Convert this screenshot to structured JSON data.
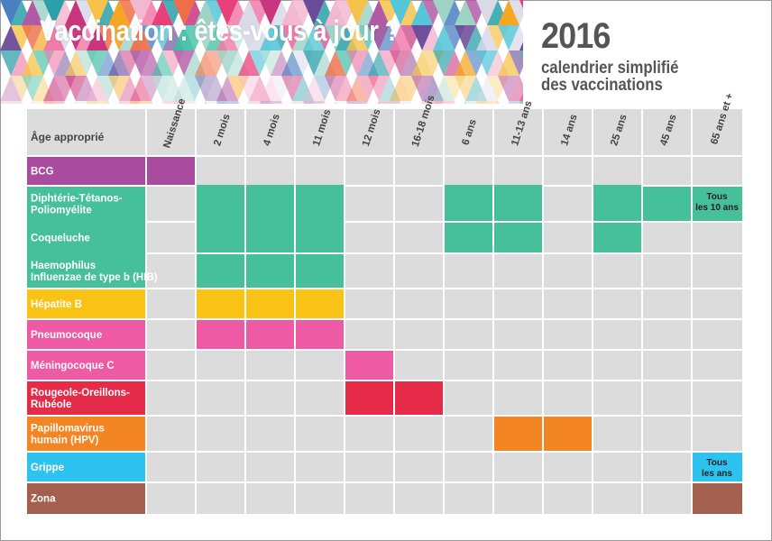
{
  "header": {
    "title": "Vaccination : êtes-vous à jour ?",
    "year": "2016",
    "subtitle_line1": "calendrier simplifié",
    "subtitle_line2": "des vaccinations"
  },
  "chart_data": {
    "type": "table",
    "corner_label": "Âge approprié",
    "columns": [
      "Naissance",
      "2 mois",
      "4 mois",
      "11 mois",
      "12 mois",
      "16-18 mois",
      "6 ans",
      "11-13 ans",
      "14 ans",
      "25 ans",
      "45 ans",
      "65 ans et +"
    ],
    "rows": [
      {
        "label": [
          "BCG"
        ],
        "color": "#a94b9f",
        "cells": [
          0
        ]
      },
      {
        "label": [
          "Diphtérie-Tétanos-",
          "Poliomyélite"
        ],
        "color": "#46c09a",
        "cells": [
          1,
          2,
          3,
          6,
          7,
          9,
          10
        ],
        "note": [
          "Tous",
          "les 10 ans"
        ],
        "note_col": 11
      },
      {
        "label": [
          "Coqueluche"
        ],
        "color": "#46c09a",
        "cells": [
          1,
          2,
          3,
          6,
          7,
          9
        ]
      },
      {
        "label": [
          "Haemophilus",
          "Influenzae de type b (HIB)"
        ],
        "color": "#46c09a",
        "cells": [
          1,
          2,
          3
        ]
      },
      {
        "label": [
          "Hépatite B"
        ],
        "color": "#f9c315",
        "cells": [
          1,
          2,
          3
        ]
      },
      {
        "label": [
          "Pneumocoque"
        ],
        "color": "#ee5aa4",
        "cells": [
          1,
          2,
          3
        ]
      },
      {
        "label": [
          "Méningocoque C"
        ],
        "color": "#ee5aa4",
        "cells": [
          4
        ]
      },
      {
        "label": [
          "Rougeole-Oreillons-",
          "Rubéole"
        ],
        "color": "#e52b48",
        "cells": [
          4,
          5
        ]
      },
      {
        "label": [
          "Papillomavirus",
          "humain (HPV)"
        ],
        "color": "#f48523",
        "cells": [
          7,
          8
        ]
      },
      {
        "label": [
          "Grippe"
        ],
        "color": "#2ec3ee",
        "cells": [],
        "note": [
          "Tous",
          "les ans"
        ],
        "note_col": 11
      },
      {
        "label": [
          "Zona"
        ],
        "color": "#a3604e",
        "cells": [
          11
        ]
      }
    ]
  }
}
